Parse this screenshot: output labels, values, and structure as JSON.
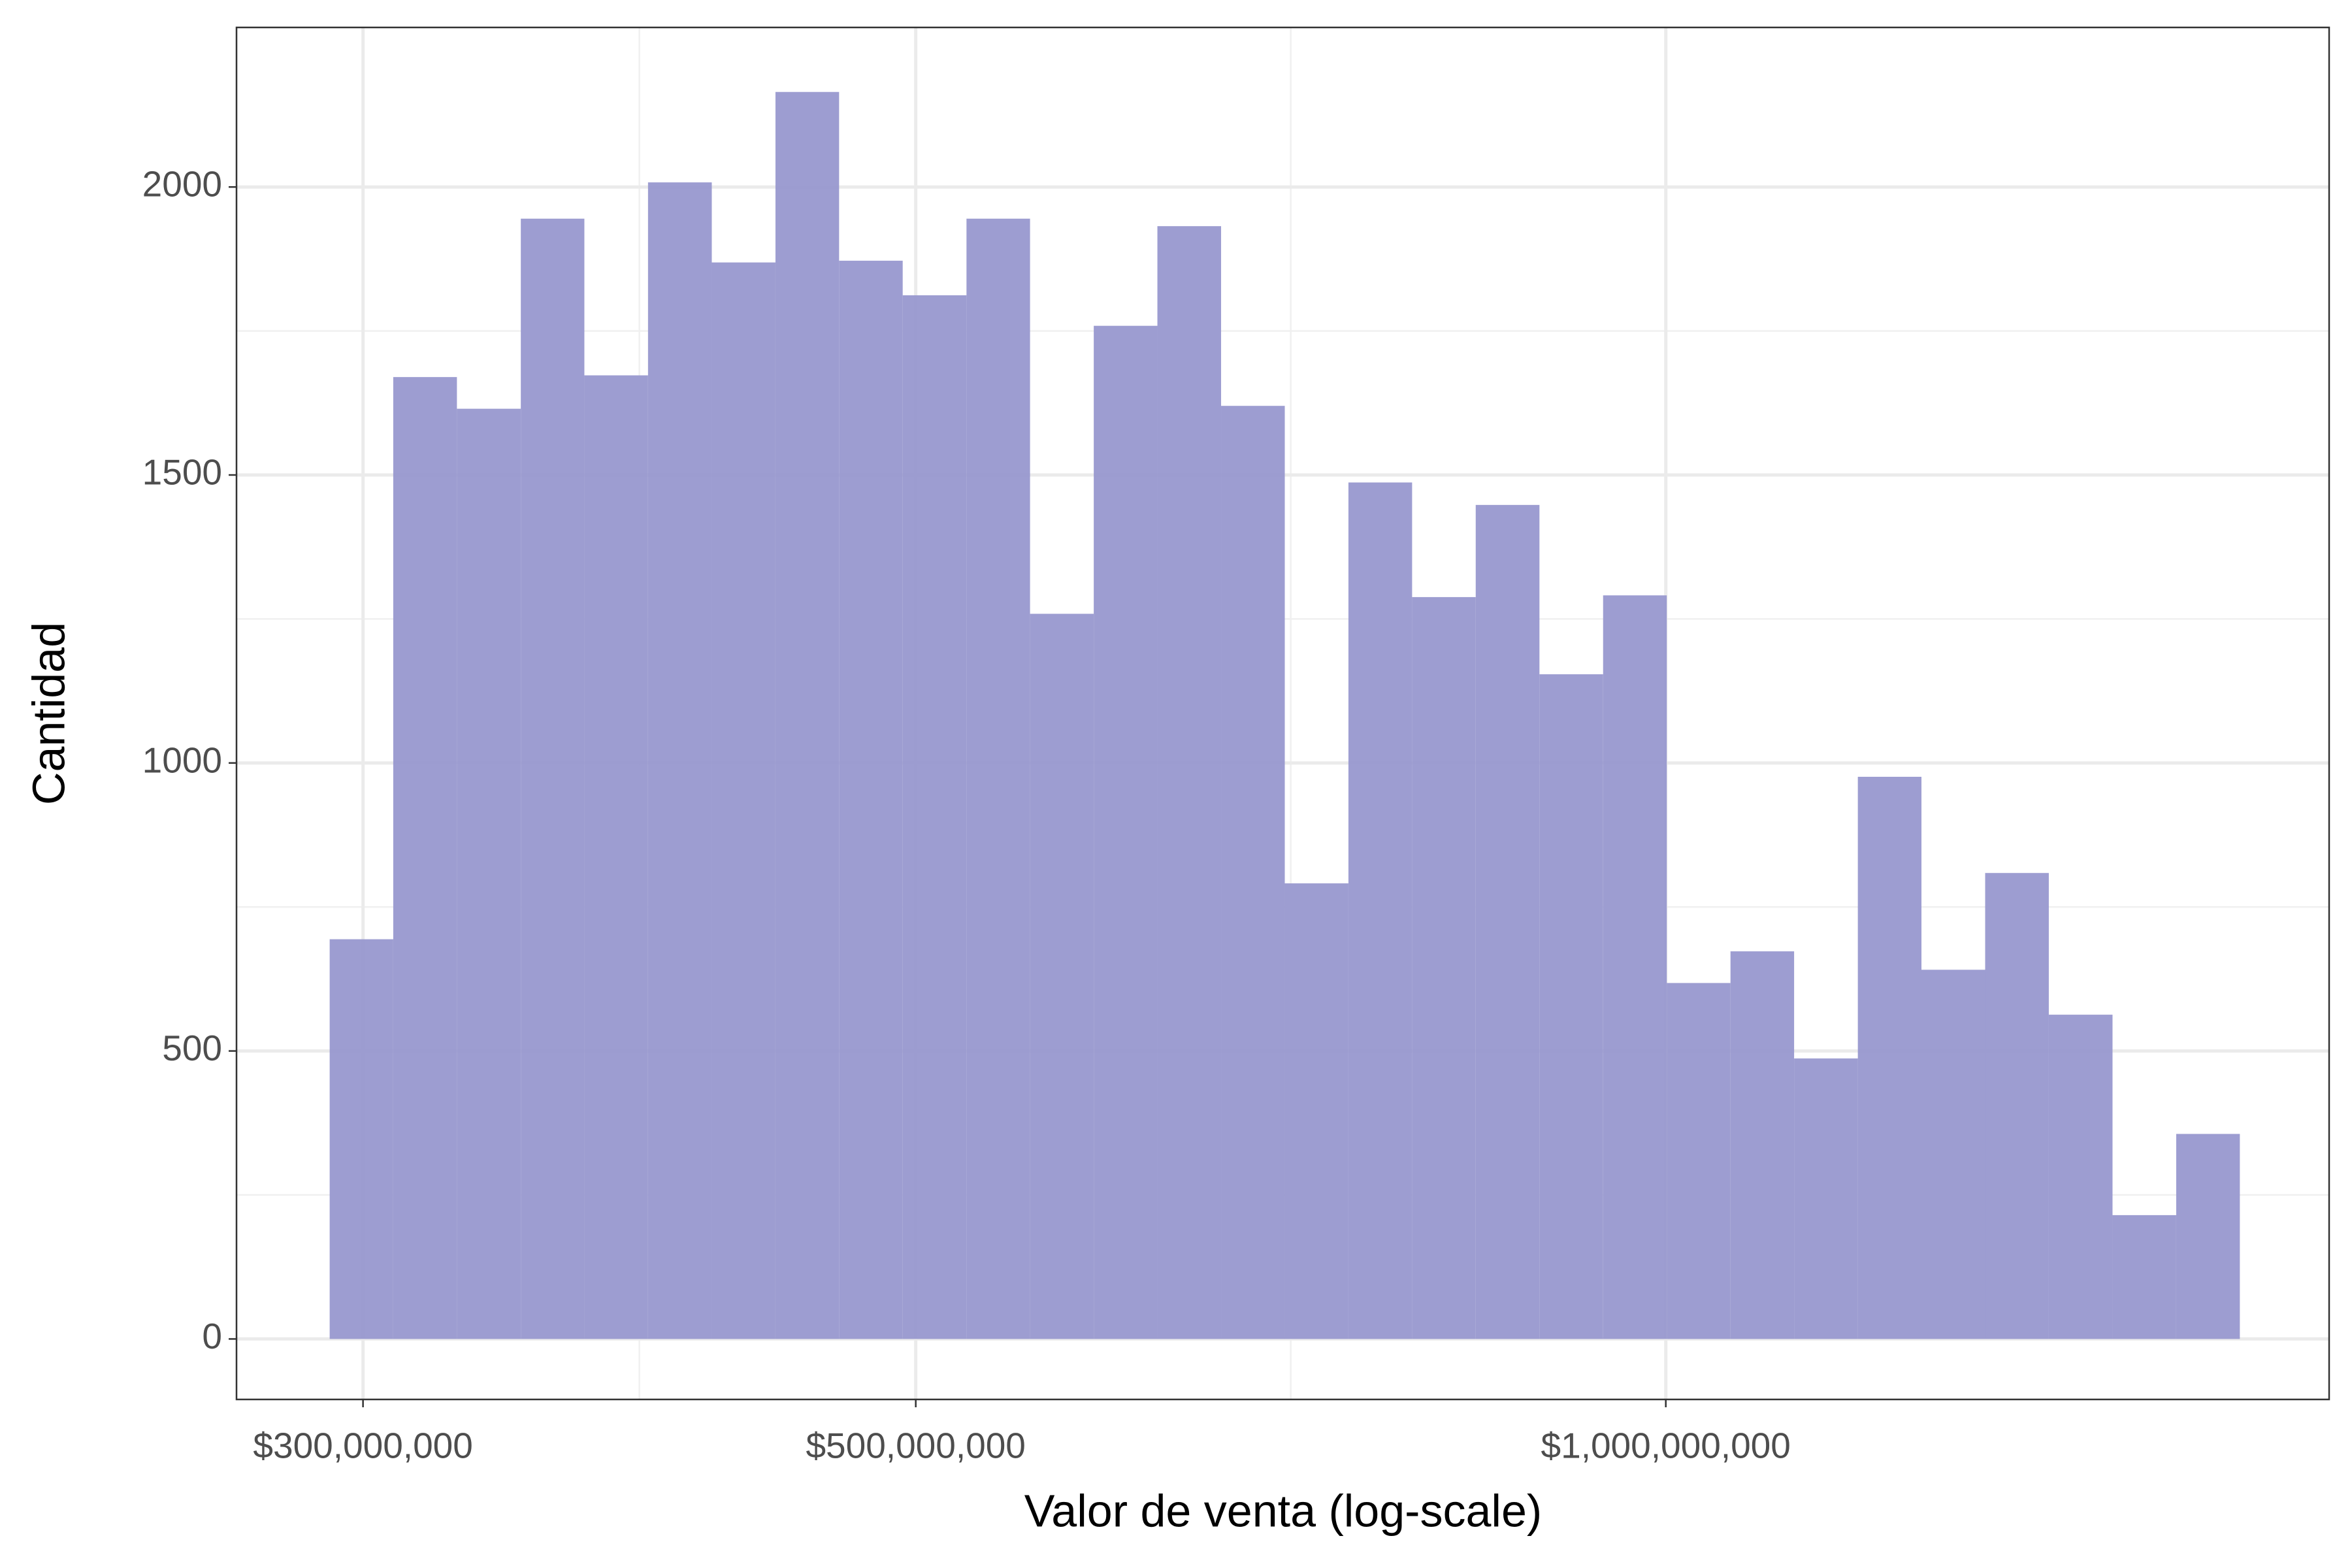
{
  "chart_data": {
    "type": "histogram",
    "xlabel": "Valor de venta (log-scale)",
    "ylabel": "Cantidad",
    "xscale": "log",
    "grid": true,
    "color": "#9898cf",
    "bins": [
      290900000,
      308500000,
      327200000,
      347100000,
      368100000,
      390400000,
      414100000,
      439200000,
      465800000,
      494000000,
      524000000,
      555700000,
      589400000,
      625100000,
      663000000,
      703200000,
      745800000,
      791000000,
      838900000,
      889800000,
      943700000,
      1000900000,
      1061600000,
      1125900000,
      1194200000,
      1266500000,
      1343300000,
      1424700000,
      1511100000,
      1602700000,
      1699800000
    ],
    "counts": [
      694,
      1670,
      1615,
      1945,
      1673,
      2008,
      1869,
      2165,
      1872,
      1812,
      1945,
      1259,
      1759,
      1932,
      1620,
      791,
      1487,
      1288,
      1448,
      1154,
      1291,
      618,
      673,
      487,
      976,
      641,
      809,
      563,
      215,
      356
    ],
    "xlim": [
      266900000,
      1846000000
    ],
    "ylim": [
      -105,
      2277
    ],
    "xticks": [
      {
        "value": 300000000,
        "label": "$300,000,000"
      },
      {
        "value": 500000000,
        "label": "$500,000,000"
      },
      {
        "value": 1000000000,
        "label": "$1,000,000,000"
      }
    ],
    "yticks": [
      0,
      500,
      1000,
      1500,
      2000
    ]
  }
}
